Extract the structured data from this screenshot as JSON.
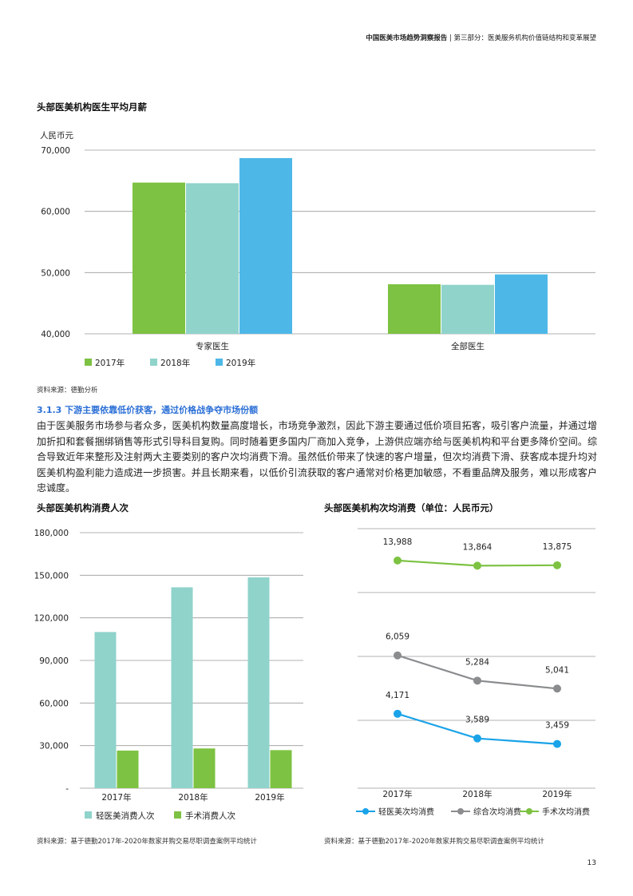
{
  "header": {
    "bold": "中国医美市场趋势洞察报告",
    "separator": " | ",
    "rest": "第三部分：医美服务机构价值链结构和变革展望"
  },
  "chart1": {
    "title": "头部医美机构医生平均月薪",
    "source": "资料来源：德勤分析"
  },
  "section": {
    "subheading": "3.1.3 下游主要依靠低价获客，通过价格战争夺市场份额",
    "paragraph": "由于医美服务市场参与者众多，医美机构数量高度增长，市场竞争激烈，因此下游主要通过低价项目拓客，吸引客户流量，并通过增加折扣和套餐捆绑销售等形式引导科目复购。同时随着更多国内厂商加入竞争，上游供应端亦给与医美机构和平台更多降价空间。综合导致近年来整形及注射两大主要类别的客户次均消费下滑。虽然低价带来了快速的客户增量，但次均消费下滑、获客成本提升均对医美机构盈利能力造成进一步损害。并且长期来看，以低价引流获取的客户通常对价格更加敏感，不看重品牌及服务，难以形成客户忠诚度。"
  },
  "chart2": {
    "title": "头部医美机构消费人次",
    "source": "资料来源：基于德勤2017年-2020年数家并购交易尽职调查案例平均统计"
  },
  "chart3": {
    "title": "头部医美机构次均消费（单位：人民币元）",
    "source": "资料来源：基于德勤2017年-2020年数家并购交易尽职调查案例平均统计"
  },
  "page_number": "13",
  "colors": {
    "green": "#7dc242",
    "teal": "#8fd3cb",
    "blue": "#4db8e8",
    "line_blue": "#1aa3e8",
    "line_gray": "#8a8c8e",
    "line_green": "#7dc242",
    "subhead": "#2b6fd6"
  },
  "chart_data": [
    {
      "type": "bar",
      "ylabel": "人民币元",
      "categories": [
        "专家医生",
        "全部医生"
      ],
      "series": [
        {
          "name": "2017年",
          "values": [
            64700,
            48100
          ]
        },
        {
          "name": "2018年",
          "values": [
            64600,
            48000
          ]
        },
        {
          "name": "2019年",
          "values": [
            68700,
            49700
          ]
        }
      ],
      "ylim": [
        40000,
        70000
      ],
      "yticks": [
        40000,
        50000,
        60000,
        70000
      ],
      "ytick_labels": [
        "40,000",
        "50,000",
        "60,000",
        "70,000"
      ],
      "grid": true,
      "legend": "bottom-left"
    },
    {
      "type": "bar",
      "categories": [
        "2017年",
        "2018年",
        "2019年"
      ],
      "series": [
        {
          "name": "轻医美消费人次",
          "values": [
            110000,
            141500,
            148500
          ]
        },
        {
          "name": "手术消费人次",
          "values": [
            26500,
            28000,
            26800
          ]
        }
      ],
      "ylim": [
        0,
        180000
      ],
      "yticks": [
        0,
        30000,
        60000,
        90000,
        120000,
        150000,
        180000
      ],
      "ytick_labels": [
        "-",
        "30,000",
        "60,000",
        "90,000",
        "120,000",
        "150,000",
        "180,000"
      ],
      "grid": true,
      "legend": "bottom"
    },
    {
      "type": "line",
      "categories": [
        "2017年",
        "2018年",
        "2019年"
      ],
      "series": [
        {
          "name": "轻医美次均消费",
          "values": [
            4171,
            3589,
            3459
          ],
          "labels": [
            "4,171",
            "3,589",
            "3,459"
          ]
        },
        {
          "name": "综合次均消费",
          "values": [
            6059,
            5284,
            5041
          ],
          "labels": [
            "6,059",
            "5,284",
            "5,041"
          ]
        },
        {
          "name": "手术次均消费",
          "values": [
            13988,
            13864,
            13875
          ],
          "labels": [
            "13,988",
            "13,864",
            "13,875"
          ]
        }
      ],
      "grid": true,
      "legend": "bottom"
    }
  ]
}
